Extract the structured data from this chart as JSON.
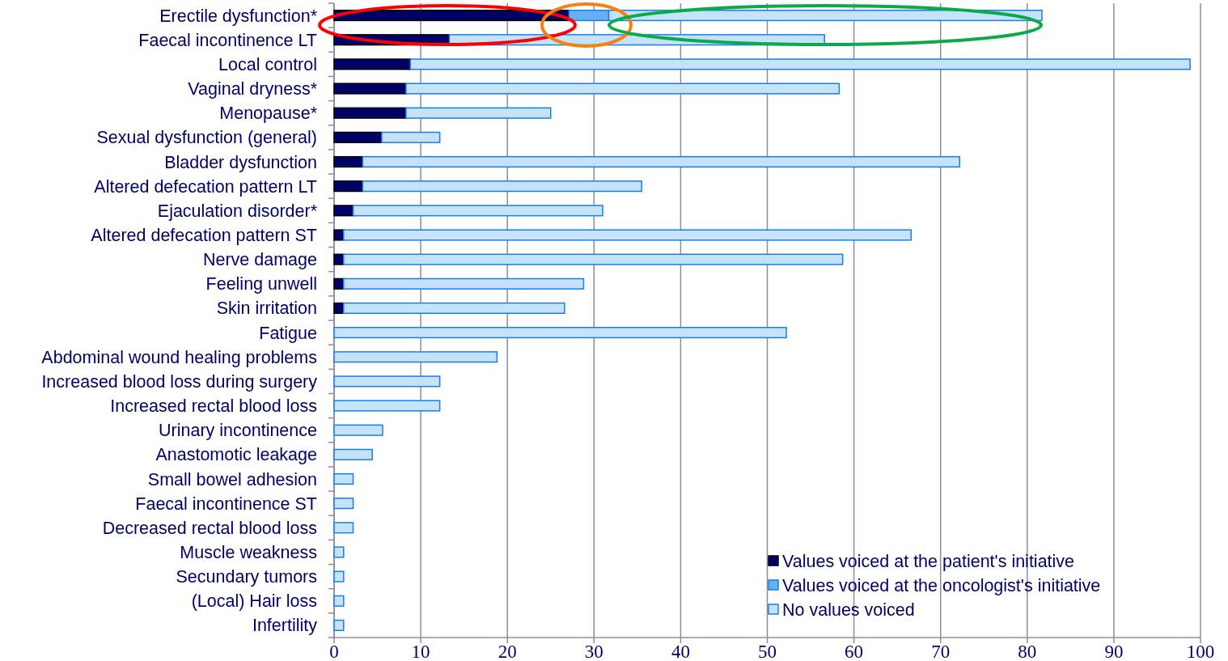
{
  "chart_data": {
    "type": "bar",
    "orientation": "horizontal",
    "stacked": true,
    "categories": [
      "Erectile dysfunction*",
      "Faecal incontinence LT",
      "Local control",
      "Vaginal dryness*",
      "Menopause*",
      "Sexual dysfunction (general)",
      "Bladder dysfunction",
      "Altered defecation pattern LT",
      "Ejaculation disorder*",
      "Altered defecation pattern ST",
      "Nerve damage",
      "Feeling unwell",
      "Skin irritation",
      "Fatigue",
      "Abdominal wound healing problems",
      "Increased blood loss during surgery",
      "Increased rectal blood loss",
      "Urinary incontinence",
      "Anastomotic leakage",
      "Small bowel adhesion",
      "Faecal incontinence ST",
      "Decreased rectal blood loss",
      "Muscle weakness",
      "Secundary tumors",
      "(Local) Hair loss",
      "Infertility"
    ],
    "series": [
      {
        "name": "Values voiced at the patient's initiative",
        "color": "#000066",
        "values": [
          27.1,
          13.3,
          8.8,
          8.3,
          8.3,
          5.5,
          3.3,
          3.3,
          2.2,
          1.1,
          1.1,
          1.1,
          1.1,
          0,
          0,
          0,
          0,
          0,
          0,
          0,
          0,
          0,
          0,
          0,
          0,
          0
        ]
      },
      {
        "name": "Values voiced at the oncologist's initiative",
        "color": "#66b0f2",
        "values": [
          4.6,
          0,
          0,
          0,
          0,
          0,
          0,
          0,
          0,
          0,
          0,
          0,
          0,
          0,
          0,
          0,
          0,
          0,
          0,
          0,
          0,
          0,
          0,
          0,
          0,
          0
        ]
      },
      {
        "name": "No values voiced",
        "color": "#c5e2fb",
        "values": [
          50.0,
          43.3,
          90.0,
          50.0,
          16.7,
          6.7,
          68.9,
          32.2,
          28.8,
          65.5,
          57.6,
          27.7,
          25.5,
          52.2,
          18.8,
          12.2,
          12.2,
          5.6,
          4.4,
          2.2,
          2.2,
          2.2,
          1.1,
          1.1,
          1.1,
          1.1
        ]
      }
    ],
    "xlim": [
      0,
      100
    ],
    "xticks": [
      0,
      10,
      20,
      30,
      40,
      50,
      60,
      70,
      80,
      90,
      100
    ],
    "grid": "x",
    "legend": "bottom right"
  }
}
